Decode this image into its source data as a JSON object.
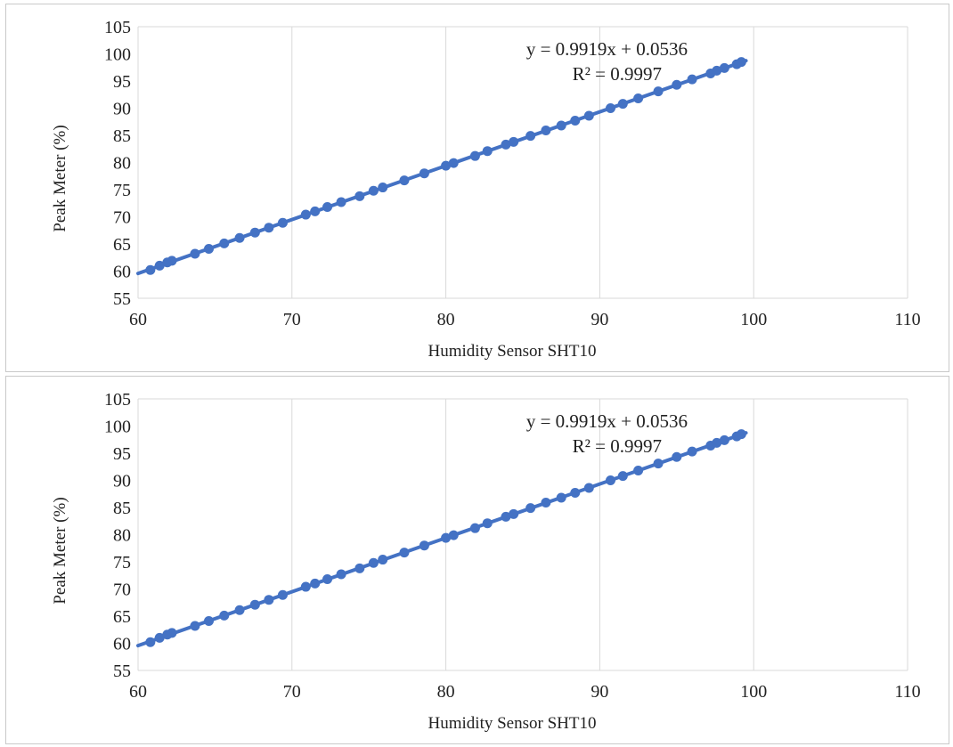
{
  "colors": {
    "series": "#4472c4",
    "grid": "#d9d9d9",
    "text": "#222222"
  },
  "chart_data": [
    {
      "type": "scatter",
      "xlabel": "Humidity Sensor SHT10",
      "ylabel": "Peak Meter (%)",
      "xlim": [
        60,
        110
      ],
      "ylim": [
        55,
        105
      ],
      "xticks": [
        "60",
        "70",
        "80",
        "90",
        "100",
        "110"
      ],
      "yticks": [
        "55",
        "60",
        "65",
        "70",
        "75",
        "80",
        "85",
        "90",
        "95",
        "100",
        "105"
      ],
      "grid": "vertical",
      "legend": "none",
      "trendline": {
        "type": "linear",
        "slope": 0.9919,
        "intercept": 0.0536,
        "x_range": [
          60,
          99.5
        ]
      },
      "annotations": [
        "y = 0.9919x + 0.0536",
        "R² = 0.9997"
      ],
      "series": [
        {
          "x": [
            60.8,
            61.4,
            61.9,
            62.2,
            63.7,
            64.6,
            65.6,
            66.6,
            67.6,
            68.5,
            69.4,
            70.9,
            71.5,
            72.3,
            73.2,
            74.4,
            75.3,
            75.9,
            77.3,
            78.6,
            80.0,
            80.5,
            81.9,
            82.7,
            83.9,
            84.4,
            85.5,
            86.5,
            87.5,
            88.4,
            89.3,
            90.7,
            91.5,
            92.5,
            93.8,
            95.0,
            96.0,
            97.2,
            97.6,
            98.1,
            98.9,
            99.2
          ],
          "y": [
            60.2,
            61.0,
            61.6,
            61.9,
            63.2,
            64.1,
            65.1,
            66.1,
            67.1,
            68.0,
            68.9,
            70.4,
            71.0,
            71.8,
            72.7,
            73.8,
            74.8,
            75.4,
            76.7,
            78.0,
            79.4,
            79.9,
            81.2,
            82.1,
            83.3,
            83.8,
            84.9,
            85.9,
            86.8,
            87.7,
            88.6,
            90.0,
            90.8,
            91.8,
            93.1,
            94.3,
            95.3,
            96.4,
            96.9,
            97.4,
            98.1,
            98.5
          ]
        }
      ]
    },
    {
      "type": "scatter",
      "xlabel": "Humidity Sensor SHT10",
      "ylabel": "Peak Meter (%)",
      "xlim": [
        60,
        110
      ],
      "ylim": [
        55,
        105
      ],
      "xticks": [
        "60",
        "70",
        "80",
        "90",
        "100",
        "110"
      ],
      "yticks": [
        "55",
        "60",
        "65",
        "70",
        "75",
        "80",
        "85",
        "90",
        "95",
        "100",
        "105"
      ],
      "grid": "vertical",
      "legend": "none",
      "trendline": {
        "type": "linear",
        "slope": 0.9919,
        "intercept": 0.0536,
        "x_range": [
          60,
          99.5
        ]
      },
      "annotations": [
        "y = 0.9919x + 0.0536",
        "R² = 0.9997"
      ],
      "series": [
        {
          "x": [
            60.8,
            61.4,
            61.9,
            62.2,
            63.7,
            64.6,
            65.6,
            66.6,
            67.6,
            68.5,
            69.4,
            70.9,
            71.5,
            72.3,
            73.2,
            74.4,
            75.3,
            75.9,
            77.3,
            78.6,
            80.0,
            80.5,
            81.9,
            82.7,
            83.9,
            84.4,
            85.5,
            86.5,
            87.5,
            88.4,
            89.3,
            90.7,
            91.5,
            92.5,
            93.8,
            95.0,
            96.0,
            97.2,
            97.6,
            98.1,
            98.9,
            99.2
          ],
          "y": [
            60.2,
            61.0,
            61.6,
            61.9,
            63.2,
            64.1,
            65.1,
            66.1,
            67.1,
            68.0,
            68.9,
            70.4,
            71.0,
            71.8,
            72.7,
            73.8,
            74.8,
            75.4,
            76.7,
            78.0,
            79.4,
            79.9,
            81.2,
            82.1,
            83.3,
            83.8,
            84.9,
            85.9,
            86.8,
            87.7,
            88.6,
            90.0,
            90.8,
            91.8,
            93.1,
            94.3,
            95.3,
            96.4,
            96.9,
            97.4,
            98.1,
            98.5
          ]
        }
      ]
    }
  ]
}
